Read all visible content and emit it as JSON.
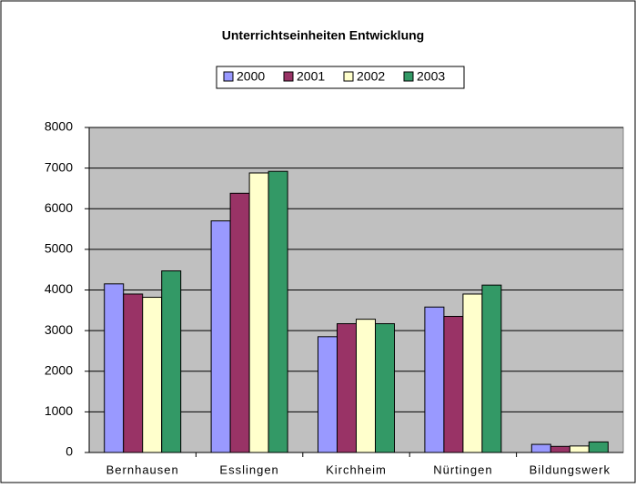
{
  "chart_data": {
    "type": "bar",
    "title": "Unterrichtseinheiten Entwicklung",
    "categories": [
      "Bernhausen",
      "Esslingen",
      "Kirchheim",
      "Nürtingen",
      "Bildungswerk"
    ],
    "series": [
      {
        "name": "2000",
        "color": "#9999ff",
        "values": [
          4150,
          5700,
          2850,
          3580,
          200
        ]
      },
      {
        "name": "2001",
        "color": "#993366",
        "values": [
          3900,
          6380,
          3170,
          3350,
          150
        ]
      },
      {
        "name": "2002",
        "color": "#ffffcc",
        "values": [
          3820,
          6880,
          3280,
          3900,
          160
        ]
      },
      {
        "name": "2003",
        "color": "#339966",
        "values": [
          4470,
          6920,
          3170,
          4120,
          260
        ]
      }
    ],
    "ylim": [
      0,
      8000
    ],
    "yticks": [
      0,
      1000,
      2000,
      3000,
      4000,
      5000,
      6000,
      7000,
      8000
    ],
    "grid": true,
    "legend": "top"
  }
}
